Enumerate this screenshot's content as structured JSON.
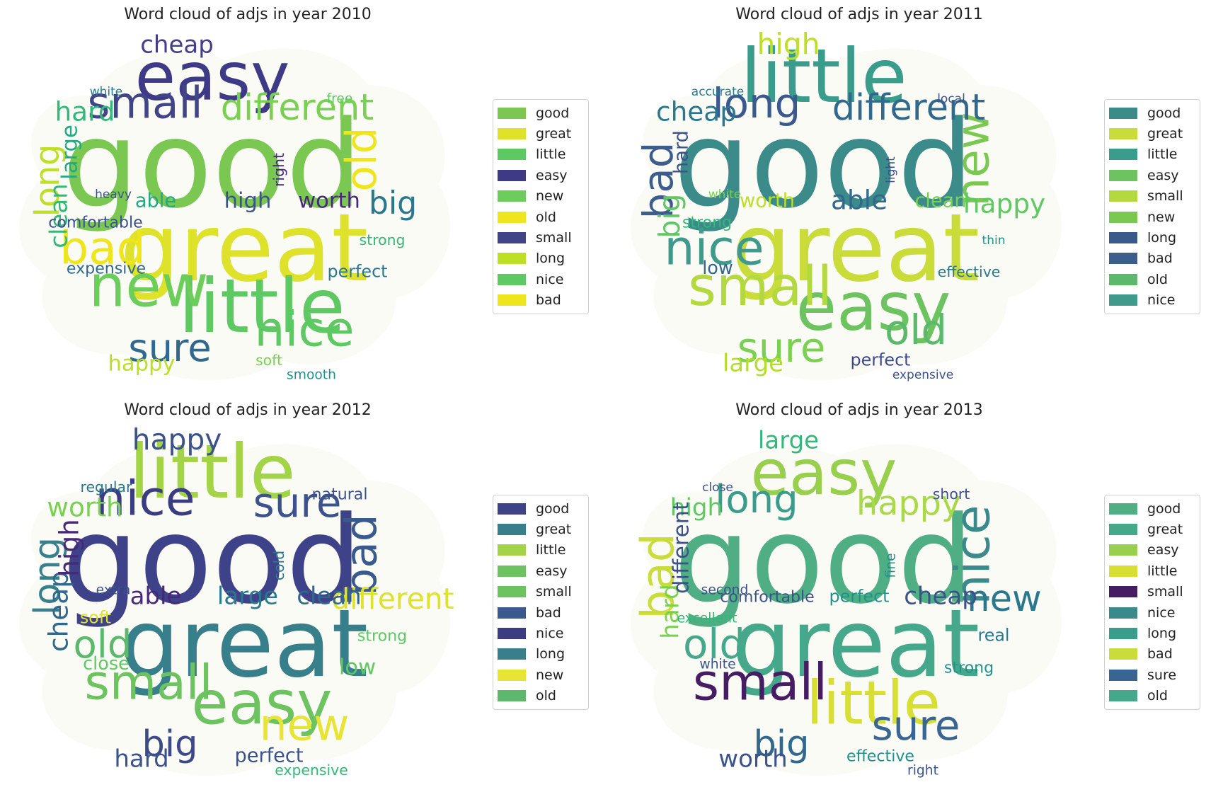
{
  "chart_data": [
    {
      "type": "word-cloud",
      "title": "Word cloud of adjs in year 2010",
      "words": [
        {
          "text": "good",
          "size": 1.0,
          "color": "#7ac851"
        },
        {
          "text": "great",
          "size": 0.78,
          "color": "#dfe22a"
        },
        {
          "text": "easy",
          "size": 0.55,
          "color": "#3e3a85"
        },
        {
          "text": "little",
          "size": 0.62,
          "color": "#5ec962"
        },
        {
          "text": "new",
          "size": 0.48,
          "color": "#6ccd5a"
        },
        {
          "text": "old",
          "size": 0.35,
          "color": "#efe51c"
        },
        {
          "text": "small",
          "size": 0.36,
          "color": "#414487"
        },
        {
          "text": "long",
          "size": 0.28,
          "color": "#bddf26"
        },
        {
          "text": "nice",
          "size": 0.4,
          "color": "#5ec962"
        },
        {
          "text": "bad",
          "size": 0.38,
          "color": "#efe51c"
        },
        {
          "text": "different",
          "size": 0.3,
          "color": "#7ad151"
        },
        {
          "text": "sure",
          "size": 0.32,
          "color": "#31688e"
        },
        {
          "text": "big",
          "size": 0.26,
          "color": "#2a788e"
        },
        {
          "text": "cheap",
          "size": 0.2,
          "color": "#433e85"
        },
        {
          "text": "hard",
          "size": 0.22,
          "color": "#35b779"
        },
        {
          "text": "clean",
          "size": 0.2,
          "color": "#35b779"
        },
        {
          "text": "large",
          "size": 0.18,
          "color": "#22a884"
        },
        {
          "text": "happy",
          "size": 0.18,
          "color": "#bddf26"
        },
        {
          "text": "worth",
          "size": 0.18,
          "color": "#482878"
        },
        {
          "text": "high",
          "size": 0.18,
          "color": "#3b528b"
        },
        {
          "text": "able",
          "size": 0.16,
          "color": "#22a884"
        },
        {
          "text": "soft",
          "size": 0.12,
          "color": "#7ad151"
        },
        {
          "text": "perfect",
          "size": 0.14,
          "color": "#2a788e"
        },
        {
          "text": "comfortable",
          "size": 0.13,
          "color": "#3b528b"
        },
        {
          "text": "expensive",
          "size": 0.13,
          "color": "#31688e"
        },
        {
          "text": "free",
          "size": 0.11,
          "color": "#5ec962"
        },
        {
          "text": "strong",
          "size": 0.12,
          "color": "#35b779"
        },
        {
          "text": "smooth",
          "size": 0.11,
          "color": "#21918c"
        },
        {
          "text": "white",
          "size": 0.1,
          "color": "#2a788e"
        },
        {
          "text": "heavy",
          "size": 0.1,
          "color": "#3b528b"
        },
        {
          "text": "right",
          "size": 0.12,
          "color": "#482878"
        }
      ],
      "legend": [
        {
          "label": "good",
          "color": "#7ac851"
        },
        {
          "label": "great",
          "color": "#dfe22a"
        },
        {
          "label": "little",
          "color": "#5ec962"
        },
        {
          "label": "easy",
          "color": "#3e3a85"
        },
        {
          "label": "new",
          "color": "#6ccd5a"
        },
        {
          "label": "old",
          "color": "#efe51c"
        },
        {
          "label": "small",
          "color": "#414487"
        },
        {
          "label": "long",
          "color": "#bddf26"
        },
        {
          "label": "nice",
          "color": "#5ec962"
        },
        {
          "label": "bad",
          "color": "#efe51c"
        }
      ]
    },
    {
      "type": "word-cloud",
      "title": "Word cloud of adjs in year 2011",
      "words": [
        {
          "text": "good",
          "size": 1.0,
          "color": "#3b8b8a"
        },
        {
          "text": "great",
          "size": 0.78,
          "color": "#c9dc3a"
        },
        {
          "text": "little",
          "size": 0.62,
          "color": "#3a9c8a"
        },
        {
          "text": "easy",
          "size": 0.55,
          "color": "#6cc35f"
        },
        {
          "text": "small",
          "size": 0.45,
          "color": "#b4d93f"
        },
        {
          "text": "new",
          "size": 0.38,
          "color": "#7ac851"
        },
        {
          "text": "long",
          "size": 0.34,
          "color": "#3a5a8e"
        },
        {
          "text": "bad",
          "size": 0.34,
          "color": "#3d5d8c"
        },
        {
          "text": "old",
          "size": 0.34,
          "color": "#5cb86a"
        },
        {
          "text": "nice",
          "size": 0.4,
          "color": "#3f9a8b"
        },
        {
          "text": "different",
          "size": 0.3,
          "color": "#31688e"
        },
        {
          "text": "sure",
          "size": 0.34,
          "color": "#7ad151"
        },
        {
          "text": "happy",
          "size": 0.22,
          "color": "#5ec962"
        },
        {
          "text": "high",
          "size": 0.24,
          "color": "#bddf26"
        },
        {
          "text": "cheap",
          "size": 0.22,
          "color": "#2a788e"
        },
        {
          "text": "big",
          "size": 0.24,
          "color": "#5ec962"
        },
        {
          "text": "hard",
          "size": 0.16,
          "color": "#3b528b"
        },
        {
          "text": "large",
          "size": 0.2,
          "color": "#b5de2b"
        },
        {
          "text": "clean",
          "size": 0.16,
          "color": "#7ad151"
        },
        {
          "text": "able",
          "size": 0.22,
          "color": "#31688e"
        },
        {
          "text": "worth",
          "size": 0.16,
          "color": "#bddf26"
        },
        {
          "text": "perfect",
          "size": 0.14,
          "color": "#3e4989"
        },
        {
          "text": "effective",
          "size": 0.12,
          "color": "#2a788e"
        },
        {
          "text": "strong",
          "size": 0.13,
          "color": "#35b779"
        },
        {
          "text": "low",
          "size": 0.15,
          "color": "#31688e"
        },
        {
          "text": "local",
          "size": 0.1,
          "color": "#3b528b"
        },
        {
          "text": "thin",
          "size": 0.1,
          "color": "#21918c"
        },
        {
          "text": "expensive",
          "size": 0.1,
          "color": "#3b528b"
        },
        {
          "text": "accurate",
          "size": 0.1,
          "color": "#2a788e"
        },
        {
          "text": "white",
          "size": 0.1,
          "color": "#7ad151"
        },
        {
          "text": "light",
          "size": 0.1,
          "color": "#3b528b"
        }
      ],
      "legend": [
        {
          "label": "good",
          "color": "#3b8b8a"
        },
        {
          "label": "great",
          "color": "#c9dc3a"
        },
        {
          "label": "little",
          "color": "#3a9c8a"
        },
        {
          "label": "easy",
          "color": "#6cc35f"
        },
        {
          "label": "small",
          "color": "#b4d93f"
        },
        {
          "label": "new",
          "color": "#7ac851"
        },
        {
          "label": "long",
          "color": "#3a5a8e"
        },
        {
          "label": "bad",
          "color": "#3d5d8c"
        },
        {
          "label": "old",
          "color": "#5cb86a"
        },
        {
          "label": "nice",
          "color": "#3f9a8b"
        }
      ]
    },
    {
      "type": "word-cloud",
      "title": "Word cloud of adjs in year 2012",
      "words": [
        {
          "text": "good",
          "size": 1.0,
          "color": "#3e4288"
        },
        {
          "text": "great",
          "size": 0.78,
          "color": "#37808b"
        },
        {
          "text": "little",
          "size": 0.62,
          "color": "#a3d347"
        },
        {
          "text": "easy",
          "size": 0.5,
          "color": "#6cc35f"
        },
        {
          "text": "small",
          "size": 0.4,
          "color": "#6cc35f"
        },
        {
          "text": "bad",
          "size": 0.36,
          "color": "#3a5a8e"
        },
        {
          "text": "nice",
          "size": 0.4,
          "color": "#3b3c82"
        },
        {
          "text": "long",
          "size": 0.3,
          "color": "#37808b"
        },
        {
          "text": "new",
          "size": 0.36,
          "color": "#e8e433"
        },
        {
          "text": "old",
          "size": 0.32,
          "color": "#5cb86a"
        },
        {
          "text": "sure",
          "size": 0.34,
          "color": "#3b528b"
        },
        {
          "text": "big",
          "size": 0.3,
          "color": "#3e4989"
        },
        {
          "text": "different",
          "size": 0.24,
          "color": "#dfe22a"
        },
        {
          "text": "happy",
          "size": 0.24,
          "color": "#3b528b"
        },
        {
          "text": "worth",
          "size": 0.22,
          "color": "#7ad151"
        },
        {
          "text": "cheap",
          "size": 0.22,
          "color": "#31688e"
        },
        {
          "text": "high",
          "size": 0.22,
          "color": "#482878"
        },
        {
          "text": "hard",
          "size": 0.2,
          "color": "#3b528b"
        },
        {
          "text": "clean",
          "size": 0.2,
          "color": "#31688e"
        },
        {
          "text": "large",
          "size": 0.2,
          "color": "#2a788e"
        },
        {
          "text": "able",
          "size": 0.2,
          "color": "#482878"
        },
        {
          "text": "perfect",
          "size": 0.16,
          "color": "#3b528b"
        },
        {
          "text": "low",
          "size": 0.18,
          "color": "#5ec962"
        },
        {
          "text": "soft",
          "size": 0.14,
          "color": "#dfe22a"
        },
        {
          "text": "close",
          "size": 0.15,
          "color": "#5ec962"
        },
        {
          "text": "natural",
          "size": 0.13,
          "color": "#3b528b"
        },
        {
          "text": "strong",
          "size": 0.13,
          "color": "#5ec962"
        },
        {
          "text": "expensive",
          "size": 0.12,
          "color": "#35b779"
        },
        {
          "text": "regular",
          "size": 0.12,
          "color": "#2a788e"
        },
        {
          "text": "extra",
          "size": 0.11,
          "color": "#3b528b"
        },
        {
          "text": "cold",
          "size": 0.12,
          "color": "#2a788e"
        }
      ],
      "legend": [
        {
          "label": "good",
          "color": "#3e4288"
        },
        {
          "label": "great",
          "color": "#37808b"
        },
        {
          "label": "little",
          "color": "#a3d347"
        },
        {
          "label": "easy",
          "color": "#6cc35f"
        },
        {
          "label": "small",
          "color": "#6cc35f"
        },
        {
          "label": "bad",
          "color": "#3a5a8e"
        },
        {
          "label": "nice",
          "color": "#3b3c82"
        },
        {
          "label": "long",
          "color": "#37808b"
        },
        {
          "label": "new",
          "color": "#e8e433"
        },
        {
          "label": "old",
          "color": "#5cb86a"
        }
      ]
    },
    {
      "type": "word-cloud",
      "title": "Word cloud of adjs in year 2013",
      "words": [
        {
          "text": "good",
          "size": 1.0,
          "color": "#4fae84"
        },
        {
          "text": "great",
          "size": 0.78,
          "color": "#45a88a"
        },
        {
          "text": "easy",
          "size": 0.52,
          "color": "#98cf4c"
        },
        {
          "text": "little",
          "size": 0.5,
          "color": "#d7df33"
        },
        {
          "text": "small",
          "size": 0.42,
          "color": "#461c63"
        },
        {
          "text": "nice",
          "size": 0.4,
          "color": "#3a8a8b"
        },
        {
          "text": "long",
          "size": 0.32,
          "color": "#3a9c8a"
        },
        {
          "text": "bad",
          "size": 0.38,
          "color": "#c9dc3a"
        },
        {
          "text": "sure",
          "size": 0.34,
          "color": "#3a6492"
        },
        {
          "text": "old",
          "size": 0.34,
          "color": "#45a88a"
        },
        {
          "text": "happy",
          "size": 0.28,
          "color": "#a9d848"
        },
        {
          "text": "big",
          "size": 0.3,
          "color": "#31688e"
        },
        {
          "text": "new",
          "size": 0.3,
          "color": "#2a788e"
        },
        {
          "text": "large",
          "size": 0.2,
          "color": "#35b779"
        },
        {
          "text": "high",
          "size": 0.2,
          "color": "#5ec962"
        },
        {
          "text": "hard",
          "size": 0.2,
          "color": "#7ad151"
        },
        {
          "text": "different",
          "size": 0.18,
          "color": "#3b528b"
        },
        {
          "text": "worth",
          "size": 0.2,
          "color": "#3b528b"
        },
        {
          "text": "cheap",
          "size": 0.2,
          "color": "#3b528b"
        },
        {
          "text": "perfect",
          "size": 0.14,
          "color": "#21918c"
        },
        {
          "text": "comfortable",
          "size": 0.13,
          "color": "#3b528b"
        },
        {
          "text": "effective",
          "size": 0.13,
          "color": "#21918c"
        },
        {
          "text": "strong",
          "size": 0.13,
          "color": "#21918c"
        },
        {
          "text": "excellent",
          "size": 0.11,
          "color": "#35b779"
        },
        {
          "text": "white",
          "size": 0.11,
          "color": "#3b528b"
        },
        {
          "text": "short",
          "size": 0.12,
          "color": "#3b528b"
        },
        {
          "text": "real",
          "size": 0.14,
          "color": "#2a788e"
        },
        {
          "text": "right",
          "size": 0.11,
          "color": "#3b528b"
        },
        {
          "text": "close",
          "size": 0.1,
          "color": "#3b528b"
        },
        {
          "text": "second",
          "size": 0.11,
          "color": "#3b528b"
        },
        {
          "text": "fine",
          "size": 0.11,
          "color": "#21918c"
        }
      ],
      "legend": [
        {
          "label": "good",
          "color": "#4fae84"
        },
        {
          "label": "great",
          "color": "#45a88a"
        },
        {
          "label": "easy",
          "color": "#98cf4c"
        },
        {
          "label": "little",
          "color": "#d7df33"
        },
        {
          "label": "small",
          "color": "#461c63"
        },
        {
          "label": "nice",
          "color": "#3a8a8b"
        },
        {
          "label": "long",
          "color": "#3a9c8a"
        },
        {
          "label": "bad",
          "color": "#c9dc3a"
        },
        {
          "label": "sure",
          "color": "#3a6492"
        },
        {
          "label": "old",
          "color": "#45a88a"
        }
      ]
    }
  ]
}
